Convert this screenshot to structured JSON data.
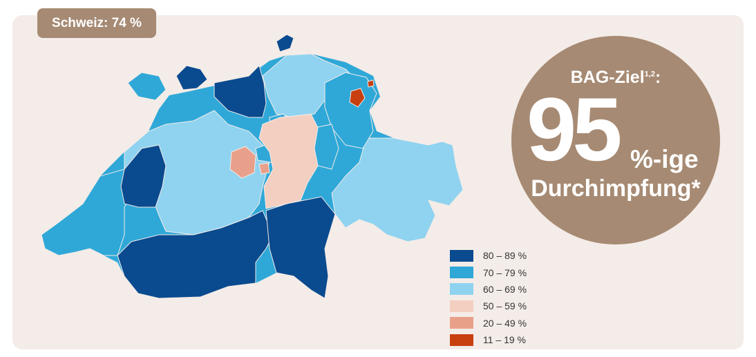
{
  "badge": {
    "label": "Schweiz: 74 %"
  },
  "goal": {
    "label": "BAG-Ziel",
    "footnote": "1,2",
    "colon": ":",
    "number": "95",
    "suffix": "%-ige",
    "subline": "Durchimpfung*"
  },
  "colors": {
    "panel": "#f4ece8",
    "accent": "#a68a73",
    "c80_89": "#0a4a8f",
    "c70_79": "#2fa8d8",
    "c60_69": "#8fd3f0",
    "c50_59": "#f3cfc1",
    "c20_49": "#e8a08a",
    "c11_19": "#c8400f"
  },
  "legend": [
    {
      "label": "80 – 89 %",
      "color": "#0a4a8f"
    },
    {
      "label": "70 – 79 %",
      "color": "#2fa8d8"
    },
    {
      "label": "60 – 69 %",
      "color": "#8fd3f0"
    },
    {
      "label": "50 – 59 %",
      "color": "#f3cfc1"
    },
    {
      "label": "20 – 49 %",
      "color": "#e8a08a"
    },
    {
      "label": "11 – 19 %",
      "color": "#c8400f"
    }
  ]
}
